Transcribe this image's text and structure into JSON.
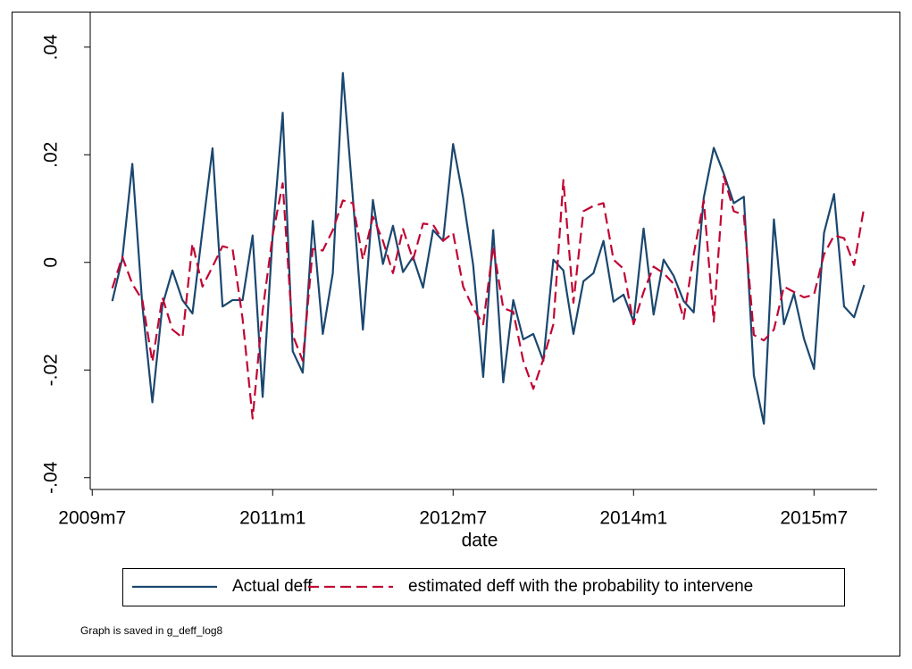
{
  "chart_data": {
    "type": "line",
    "x_label": "date",
    "note": "Graph is saved in g_deff_log8",
    "x": [
      596,
      597,
      598,
      599,
      600,
      601,
      602,
      603,
      604,
      605,
      606,
      607,
      608,
      609,
      610,
      611,
      612,
      613,
      614,
      615,
      616,
      617,
      618,
      619,
      620,
      621,
      622,
      623,
      624,
      625,
      626,
      627,
      628,
      629,
      630,
      631,
      632,
      633,
      634,
      635,
      636,
      637,
      638,
      639,
      640,
      641,
      642,
      643,
      644,
      645,
      646,
      647,
      648,
      649,
      650,
      651,
      652,
      653,
      654,
      655,
      656,
      657,
      658,
      659,
      660,
      661,
      662,
      663,
      664,
      665,
      666,
      667,
      668,
      669,
      670,
      671
    ],
    "series": [
      {
        "name": "Actual deff",
        "color": "#1a476f",
        "dash": false,
        "values": [
          -0.0072,
          0.0007,
          0.0183,
          -0.008,
          -0.026,
          -0.008,
          -0.0015,
          -0.007,
          -0.0095,
          0.006,
          0.0212,
          -0.0082,
          -0.007,
          -0.007,
          0.005,
          -0.025,
          0.005,
          0.0278,
          -0.0165,
          -0.0205,
          0.0077,
          -0.0133,
          -0.002,
          0.0352,
          0.012,
          -0.0125,
          0.0116,
          -0.0003,
          0.0068,
          -0.0018,
          0.001,
          -0.0047,
          0.006,
          0.004,
          0.022,
          0.012,
          -0.0005,
          -0.0213,
          0.006,
          -0.0223,
          -0.007,
          -0.0143,
          -0.0133,
          -0.0183,
          0.0005,
          -0.0015,
          -0.0133,
          -0.0035,
          -0.002,
          0.004,
          -0.0073,
          -0.006,
          -0.011,
          0.0063,
          -0.0097,
          0.0005,
          -0.0025,
          -0.0072,
          -0.0093,
          0.012,
          0.0213,
          0.0165,
          0.011,
          0.0122,
          -0.021,
          -0.03,
          0.008,
          -0.0115,
          -0.0058,
          -0.0142,
          -0.0198,
          0.0055,
          0.0127,
          -0.0082,
          -0.0102,
          -0.0042
        ]
      },
      {
        "name": "estimated deff with the probability to intervene",
        "color": "#c10534",
        "dash": true,
        "values": [
          -0.0048,
          0.001,
          -0.004,
          -0.007,
          -0.0185,
          -0.0065,
          -0.0125,
          -0.014,
          0.0035,
          -0.0045,
          -0.0008,
          0.003,
          0.0025,
          -0.0105,
          -0.029,
          -0.009,
          0.005,
          0.0147,
          -0.0135,
          -0.0183,
          0.0025,
          0.0022,
          0.006,
          0.0115,
          0.011,
          0.0005,
          0.0085,
          0.004,
          -0.002,
          0.0062,
          0.0005,
          0.0072,
          0.007,
          0.004,
          0.0055,
          -0.0045,
          -0.0085,
          -0.0115,
          0.003,
          -0.0085,
          -0.0092,
          -0.0183,
          -0.0235,
          -0.018,
          -0.0115,
          0.0153,
          -0.0075,
          0.0095,
          0.0105,
          0.011,
          0.0005,
          -0.0012,
          -0.0115,
          -0.0055,
          -0.0008,
          -0.002,
          -0.004,
          -0.0105,
          0.0015,
          0.0115,
          -0.011,
          0.016,
          0.0095,
          0.0088,
          -0.0135,
          -0.0145,
          -0.0125,
          -0.0045,
          -0.0055,
          -0.0065,
          -0.006,
          0.0015,
          0.005,
          0.0045,
          -0.0005,
          0.0103
        ]
      }
    ],
    "xlim": [
      593.8,
      672.3
    ],
    "xticks": [
      {
        "value": 594,
        "label": "2009m7"
      },
      {
        "value": 612,
        "label": "2011m1"
      },
      {
        "value": 630,
        "label": "2012m7"
      },
      {
        "value": 648,
        "label": "2014m1"
      },
      {
        "value": 666,
        "label": "2015m7"
      }
    ],
    "ylim": [
      -0.0422,
      0.0466
    ],
    "yticks": [
      {
        "value": -0.04,
        "label": "-.04"
      },
      {
        "value": -0.02,
        "label": "-.02"
      },
      0,
      {
        "value": 0.02,
        "label": ".02"
      },
      {
        "value": 0.04,
        "label": ".04"
      }
    ],
    "grid": false,
    "legend": "bottom"
  }
}
